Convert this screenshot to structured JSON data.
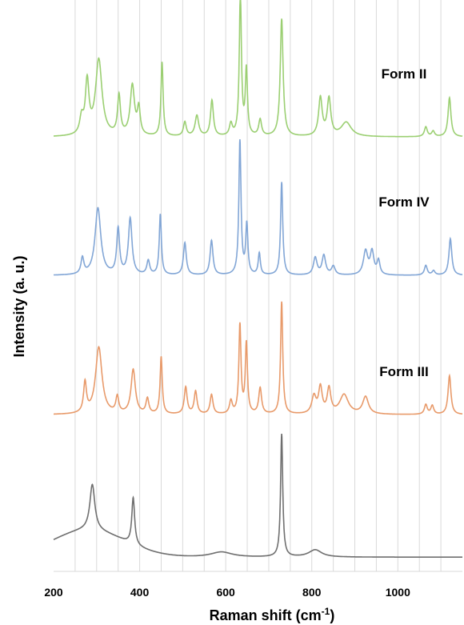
{
  "chart_data": {
    "type": "line",
    "xlabel": "Raman shift (cm",
    "xlabel_superscript": "-1",
    "xlabel_suffix": ")",
    "ylabel": "Intensity (a. u.)",
    "xlim": [
      200,
      1150
    ],
    "x_ticks": [
      200,
      400,
      600,
      800,
      1000
    ],
    "grid": "vertical",
    "stacked_offset": true,
    "series": [
      {
        "name": "Form II",
        "color": "#9bcf72",
        "baseline": 0.0,
        "peaks": [
          [
            265,
            5,
            1.5
          ],
          [
            278,
            5,
            4.8
          ],
          [
            305,
            9,
            7.0
          ],
          [
            352,
            4,
            3.6
          ],
          [
            383,
            6,
            4.6
          ],
          [
            398,
            4,
            2.4
          ],
          [
            452,
            3,
            6.8
          ],
          [
            505,
            4,
            1.3
          ],
          [
            533,
            5,
            1.9
          ],
          [
            568,
            4,
            3.3
          ],
          [
            612,
            4,
            1.1
          ],
          [
            634,
            3,
            13.0
          ],
          [
            648,
            3,
            6.0
          ],
          [
            680,
            4,
            1.5
          ],
          [
            730,
            4,
            10.8
          ],
          [
            820,
            5,
            3.5
          ],
          [
            840,
            5,
            3.4
          ],
          [
            880,
            14,
            1.3
          ],
          [
            1065,
            4,
            0.9
          ],
          [
            1082,
            4,
            0.5
          ],
          [
            1120,
            4,
            3.6
          ]
        ]
      },
      {
        "name": "Form IV",
        "color": "#82a6d6",
        "baseline": 0.0,
        "peaks": [
          [
            267,
            4,
            1.5
          ],
          [
            303,
            8,
            6.2
          ],
          [
            350,
            4,
            4.2
          ],
          [
            378,
            5,
            5.2
          ],
          [
            420,
            4,
            1.3
          ],
          [
            448,
            3,
            5.6
          ],
          [
            505,
            4,
            3.0
          ],
          [
            567,
            4,
            3.2
          ],
          [
            633,
            3,
            12.4
          ],
          [
            649,
            3,
            4.6
          ],
          [
            678,
            3,
            2.0
          ],
          [
            730,
            3,
            8.6
          ],
          [
            808,
            5,
            1.6
          ],
          [
            828,
            5,
            1.8
          ],
          [
            850,
            5,
            0.8
          ],
          [
            925,
            6,
            2.2
          ],
          [
            940,
            5,
            2.1
          ],
          [
            955,
            4,
            1.3
          ],
          [
            1065,
            4,
            0.9
          ],
          [
            1083,
            4,
            0.4
          ],
          [
            1122,
            4,
            3.4
          ]
        ]
      },
      {
        "name": "Form III",
        "color": "#e89a6a",
        "baseline": 0.0,
        "peaks": [
          [
            273,
            4,
            2.8
          ],
          [
            305,
            9,
            6.2
          ],
          [
            348,
            4,
            1.5
          ],
          [
            385,
            6,
            4.1
          ],
          [
            418,
            4,
            1.4
          ],
          [
            450,
            3,
            5.3
          ],
          [
            507,
            4,
            2.5
          ],
          [
            530,
            4,
            2.1
          ],
          [
            567,
            4,
            1.8
          ],
          [
            612,
            4,
            1.2
          ],
          [
            633,
            3,
            8.2
          ],
          [
            648,
            3,
            6.5
          ],
          [
            680,
            4,
            2.4
          ],
          [
            730,
            3,
            10.4
          ],
          [
            805,
            6,
            1.6
          ],
          [
            820,
            5,
            2.4
          ],
          [
            840,
            5,
            2.3
          ],
          [
            875,
            12,
            1.8
          ],
          [
            925,
            8,
            1.6
          ],
          [
            1065,
            4,
            0.9
          ],
          [
            1080,
            4,
            0.8
          ],
          [
            1120,
            4,
            3.6
          ]
        ]
      },
      {
        "name": "",
        "color": "#6f6f6f",
        "baseline": 0.0,
        "peaks": [
          [
            290,
            7,
            4.4
          ],
          [
            385,
            4,
            4.5
          ],
          [
            590,
            30,
            0.5
          ],
          [
            730,
            3,
            11.8
          ],
          [
            808,
            18,
            0.7
          ]
        ]
      }
    ]
  }
}
